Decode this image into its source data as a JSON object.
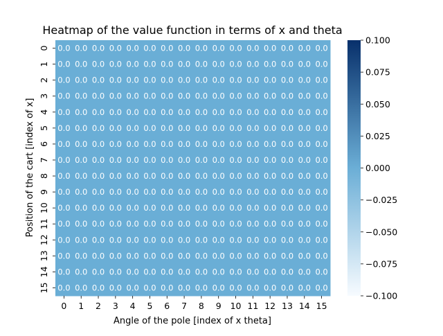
{
  "chart_data": {
    "type": "heatmap",
    "title": "Heatmap of the value function in terms of x and theta",
    "xlabel": "Angle of the pole [index of x theta]",
    "ylabel": "Position of the cart [index of x]",
    "x_categories": [
      "0",
      "1",
      "2",
      "3",
      "4",
      "5",
      "6",
      "7",
      "8",
      "9",
      "10",
      "11",
      "12",
      "13",
      "14",
      "15"
    ],
    "y_categories": [
      "0",
      "1",
      "2",
      "3",
      "4",
      "5",
      "6",
      "7",
      "8",
      "9",
      "10",
      "11",
      "12",
      "13",
      "14",
      "15"
    ],
    "values": [
      [
        0,
        0,
        0,
        0,
        0,
        0,
        0,
        0,
        0,
        0,
        0,
        0,
        0,
        0,
        0,
        0
      ],
      [
        0,
        0,
        0,
        0,
        0,
        0,
        0,
        0,
        0,
        0,
        0,
        0,
        0,
        0,
        0,
        0
      ],
      [
        0,
        0,
        0,
        0,
        0,
        0,
        0,
        0,
        0,
        0,
        0,
        0,
        0,
        0,
        0,
        0
      ],
      [
        0,
        0,
        0,
        0,
        0,
        0,
        0,
        0,
        0,
        0,
        0,
        0,
        0,
        0,
        0,
        0
      ],
      [
        0,
        0,
        0,
        0,
        0,
        0,
        0,
        0,
        0,
        0,
        0,
        0,
        0,
        0,
        0,
        0
      ],
      [
        0,
        0,
        0,
        0,
        0,
        0,
        0,
        0,
        0,
        0,
        0,
        0,
        0,
        0,
        0,
        0
      ],
      [
        0,
        0,
        0,
        0,
        0,
        0,
        0,
        0,
        0,
        0,
        0,
        0,
        0,
        0,
        0,
        0
      ],
      [
        0,
        0,
        0,
        0,
        0,
        0,
        0,
        0,
        0,
        0,
        0,
        0,
        0,
        0,
        0,
        0
      ],
      [
        0,
        0,
        0,
        0,
        0,
        0,
        0,
        0,
        0,
        0,
        0,
        0,
        0,
        0,
        0,
        0
      ],
      [
        0,
        0,
        0,
        0,
        0,
        0,
        0,
        0,
        0,
        0,
        0,
        0,
        0,
        0,
        0,
        0
      ],
      [
        0,
        0,
        0,
        0,
        0,
        0,
        0,
        0,
        0,
        0,
        0,
        0,
        0,
        0,
        0,
        0
      ],
      [
        0,
        0,
        0,
        0,
        0,
        0,
        0,
        0,
        0,
        0,
        0,
        0,
        0,
        0,
        0,
        0
      ],
      [
        0,
        0,
        0,
        0,
        0,
        0,
        0,
        0,
        0,
        0,
        0,
        0,
        0,
        0,
        0,
        0
      ],
      [
        0,
        0,
        0,
        0,
        0,
        0,
        0,
        0,
        0,
        0,
        0,
        0,
        0,
        0,
        0,
        0
      ],
      [
        0,
        0,
        0,
        0,
        0,
        0,
        0,
        0,
        0,
        0,
        0,
        0,
        0,
        0,
        0,
        0
      ],
      [
        0,
        0,
        0,
        0,
        0,
        0,
        0,
        0,
        0,
        0,
        0,
        0,
        0,
        0,
        0,
        0
      ]
    ],
    "annotation_format": "0.0",
    "colorbar": {
      "range": [
        -0.1,
        0.1
      ],
      "ticks": [
        "0.100",
        "0.075",
        "0.050",
        "0.025",
        "0.000",
        "−0.025",
        "−0.050",
        "−0.075",
        "−0.100"
      ],
      "tick_values": [
        0.1,
        0.075,
        0.05,
        0.025,
        0,
        -0.025,
        -0.05,
        -0.075,
        -0.1
      ],
      "colormap": "Blues",
      "color_low": "#f7fbff",
      "color_mid": "#6baed6",
      "color_high": "#08306b"
    },
    "cell_color": "#6aaed6",
    "annotation_color": "#ffffff"
  }
}
